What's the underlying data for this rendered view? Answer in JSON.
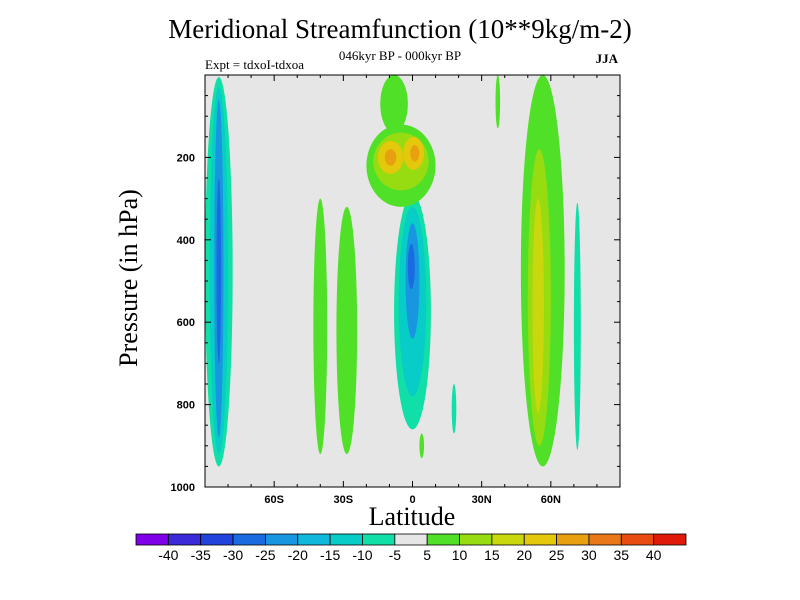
{
  "chart_data": {
    "type": "heatmap",
    "title": "Meridional Streamfunction (10**9kg/m-2)",
    "subtitle": "046kyr BP - 000kyr BP",
    "left_note": "Expt = tdxoI-tdxoa",
    "right_note": "JJA",
    "xlabel": "Latitude",
    "ylabel": "Pressure (in hPa)",
    "xlim": [
      -90,
      90
    ],
    "ylim": [
      1000,
      0
    ],
    "x_ticks": [
      {
        "value": -60,
        "label": "60S"
      },
      {
        "value": -30,
        "label": "30S"
      },
      {
        "value": 0,
        "label": "0"
      },
      {
        "value": 30,
        "label": "30N"
      },
      {
        "value": 60,
        "label": "60N"
      }
    ],
    "y_ticks": [
      {
        "value": 200,
        "label": "200"
      },
      {
        "value": 400,
        "label": "400"
      },
      {
        "value": 600,
        "label": "600"
      },
      {
        "value": 800,
        "label": "800"
      },
      {
        "value": 1000,
        "label": "1000"
      }
    ],
    "background": "#e6e6e6",
    "colorbar": {
      "labels": [
        "-40",
        "-35",
        "-30",
        "-25",
        "-20",
        "-15",
        "-10",
        "-5",
        "5",
        "10",
        "15",
        "20",
        "25",
        "30",
        "35",
        "40"
      ],
      "colors": [
        "#7f00e8",
        "#3a2ad8",
        "#2244dd",
        "#1a6be0",
        "#1896e0",
        "#10b8dc",
        "#08ccc8",
        "#10e0a8",
        "#e6e6e6",
        "#50e028",
        "#96dc10",
        "#c8d80c",
        "#e4c80c",
        "#e8a010",
        "#e87818",
        "#e84c10",
        "#e01a08"
      ]
    },
    "features": [
      {
        "name": "sh-band-outer",
        "level": "-5",
        "color": "#10e0a8",
        "lat": [
          -90,
          -78
        ],
        "p": [
          5,
          950
        ]
      },
      {
        "name": "sh-band-mid",
        "level": "-10",
        "color": "#08ccc8",
        "lat": [
          -88,
          -80
        ],
        "p": [
          30,
          920
        ]
      },
      {
        "name": "sh-band-core",
        "level": "-20",
        "color": "#1896e0",
        "lat": [
          -86,
          -82
        ],
        "p": [
          60,
          880
        ]
      },
      {
        "name": "sh-band-center",
        "level": "-25",
        "color": "#1a6be0",
        "lat": [
          -85,
          -83
        ],
        "p": [
          250,
          700
        ]
      },
      {
        "name": "nh-highlat-band",
        "level": "-5",
        "color": "#10e0a8",
        "lat": [
          70,
          73
        ],
        "p": [
          310,
          910
        ]
      },
      {
        "name": "equator-cell-outer",
        "level": "-5",
        "color": "#10e0a8",
        "lat": [
          -8,
          8
        ],
        "p": [
          290,
          860
        ]
      },
      {
        "name": "equator-cell-mid",
        "level": "-10",
        "color": "#08ccc8",
        "lat": [
          -6,
          6
        ],
        "p": [
          320,
          780
        ]
      },
      {
        "name": "equator-cell-core",
        "level": "-20",
        "color": "#1896e0",
        "lat": [
          -3,
          3
        ],
        "p": [
          360,
          640
        ]
      },
      {
        "name": "equator-cell-center",
        "level": "-25",
        "color": "#1a6be0",
        "lat": [
          -2,
          1
        ],
        "p": [
          410,
          520
        ]
      },
      {
        "name": "nh-small-cell",
        "level": "-5",
        "color": "#10e0a8",
        "lat": [
          17,
          19
        ],
        "p": [
          750,
          870
        ]
      },
      {
        "name": "sh-subtrop-band",
        "level": "5",
        "color": "#50e028",
        "lat": [
          -43,
          -37
        ],
        "p": [
          300,
          920
        ]
      },
      {
        "name": "sh-midlat-band",
        "level": "5",
        "color": "#50e028",
        "lat": [
          -33,
          -24
        ],
        "p": [
          320,
          920
        ]
      },
      {
        "name": "upper-tropic-cell",
        "level": "5",
        "color": "#50e028",
        "lat": [
          -20,
          10
        ],
        "p": [
          120,
          320
        ]
      },
      {
        "name": "upper-tropic-cell-mid",
        "level": "10",
        "color": "#96dc10",
        "lat": [
          -17,
          7
        ],
        "p": [
          140,
          280
        ]
      },
      {
        "name": "upper-tropic-core-west",
        "level": "20",
        "color": "#e4c80c",
        "lat": [
          -15,
          -4
        ],
        "p": [
          160,
          240
        ]
      },
      {
        "name": "upper-tropic-core-east",
        "level": "20",
        "color": "#e4c80c",
        "lat": [
          -4,
          5
        ],
        "p": [
          150,
          230
        ]
      },
      {
        "name": "upper-tropic-max-west",
        "level": "25",
        "color": "#e8a010",
        "lat": [
          -12,
          -7
        ],
        "p": [
          180,
          220
        ]
      },
      {
        "name": "upper-tropic-max-east",
        "level": "25",
        "color": "#e8a010",
        "lat": [
          -1,
          3
        ],
        "p": [
          170,
          210
        ]
      },
      {
        "name": "upper-tropic-pair",
        "level": "5",
        "color": "#50e028",
        "lat": [
          -14,
          -2
        ],
        "p": [
          0,
          140
        ]
      },
      {
        "name": "nh-subtrop-band",
        "level": "5",
        "color": "#50e028",
        "lat": [
          47,
          66
        ],
        "p": [
          0,
          950
        ]
      },
      {
        "name": "nh-subtrop-band-mid",
        "level": "10",
        "color": "#96dc10",
        "lat": [
          50,
          60
        ],
        "p": [
          180,
          900
        ]
      },
      {
        "name": "nh-subtrop-core",
        "level": "15",
        "color": "#c8d80c",
        "lat": [
          52,
          57
        ],
        "p": [
          300,
          820
        ]
      },
      {
        "name": "nh-small-top",
        "level": "5",
        "color": "#50e028",
        "lat": [
          36,
          38
        ],
        "p": [
          0,
          130
        ]
      },
      {
        "name": "equator-small-low",
        "level": "5",
        "color": "#50e028",
        "lat": [
          3,
          5
        ],
        "p": [
          870,
          930
        ]
      }
    ]
  }
}
